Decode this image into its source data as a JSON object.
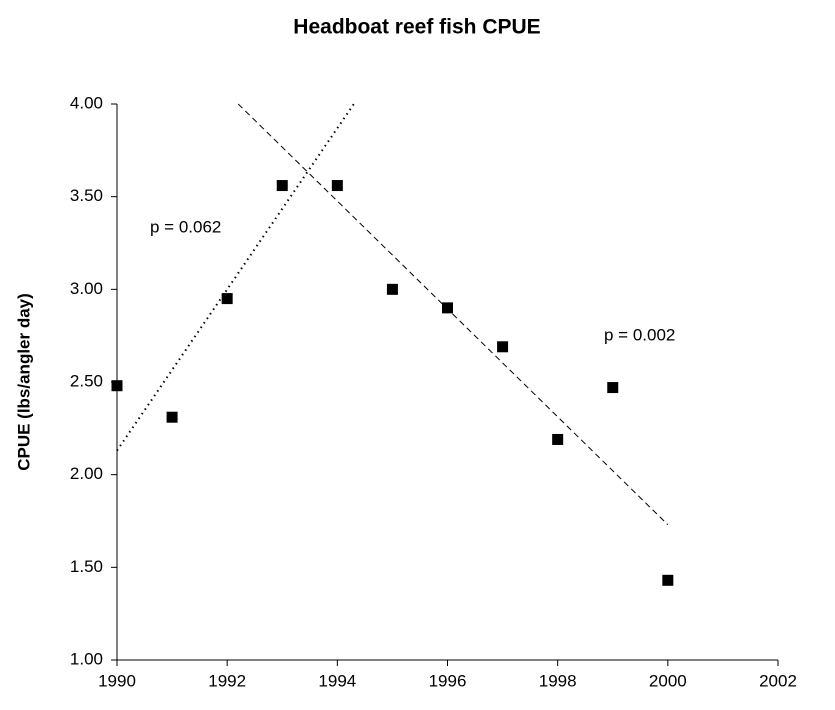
{
  "chart_data": {
    "type": "scatter",
    "title": "Headboat reef fish CPUE",
    "ylabel": "CPUE (lbs/angler day)",
    "xlim": [
      1990,
      2002
    ],
    "xticks": [
      1990,
      1992,
      1994,
      1996,
      1998,
      2000,
      2002
    ],
    "ylim": [
      1,
      4
    ],
    "yticks": [
      {
        "value": 1,
        "label": "1.00"
      },
      {
        "value": 1.5,
        "label": "1.50"
      },
      {
        "value": 2,
        "label": "2.00"
      },
      {
        "value": 2.5,
        "label": "2.50"
      },
      {
        "value": 3,
        "label": "3.00"
      },
      {
        "value": 3.5,
        "label": "3.50"
      },
      {
        "value": 4,
        "label": "4.00"
      }
    ],
    "grid": false,
    "series": [
      {
        "type": "scatter",
        "color": "#000000",
        "x": [
          1990,
          1991,
          1992,
          1993,
          1994,
          1995,
          1996,
          1997,
          1998,
          1999,
          2000
        ],
        "values": [
          2.48,
          2.31,
          2.95,
          3.56,
          3.56,
          3.0,
          2.9,
          2.69,
          2.19,
          2.47,
          1.43
        ]
      },
      {
        "type": "line",
        "style": "dotted",
        "color": "#000000",
        "x": [
          1990,
          1994.3
        ],
        "values": [
          2.13,
          4.0
        ]
      },
      {
        "type": "line",
        "style": "dashed",
        "color": "#000000",
        "x": [
          1992.2,
          2000
        ],
        "values": [
          4.0,
          1.73
        ]
      }
    ],
    "annotations": [
      "p = 0.062",
      "p = 0.002"
    ]
  }
}
